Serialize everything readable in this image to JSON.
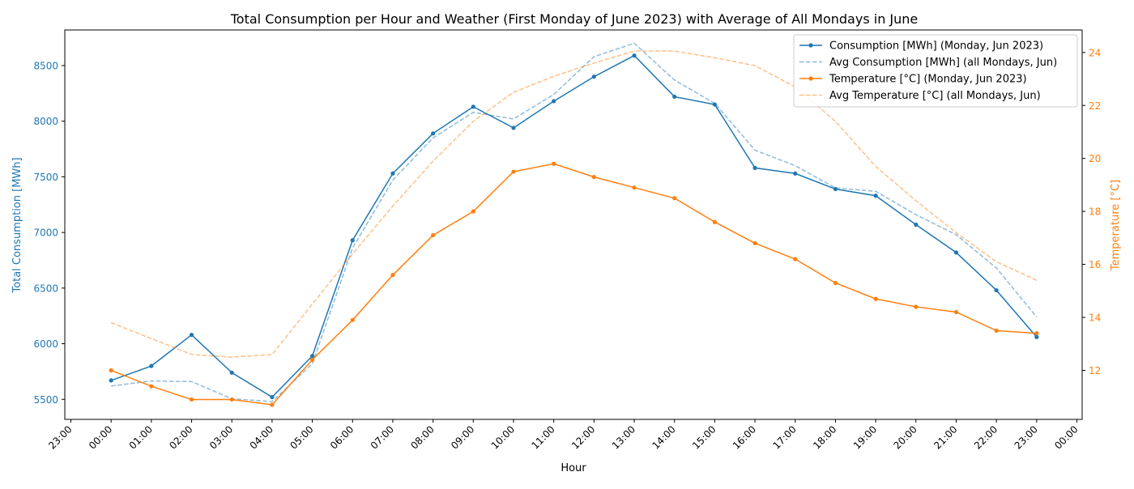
{
  "chart_data": {
    "type": "line",
    "title": "Total Consumption per Hour and Weather (First Monday of June 2023) with Average of All Mondays in June",
    "xlabel": "Hour",
    "ylabel_left": "Total Consumption [MWh]",
    "ylabel_right": "Temperature [°C]",
    "x_tick_labels": [
      "23:00",
      "00:00",
      "01:00",
      "02:00",
      "03:00",
      "04:00",
      "05:00",
      "06:00",
      "07:00",
      "08:00",
      "09:00",
      "10:00",
      "11:00",
      "12:00",
      "13:00",
      "14:00",
      "15:00",
      "16:00",
      "17:00",
      "18:00",
      "19:00",
      "20:00",
      "21:00",
      "22:00",
      "23:00",
      "00:00"
    ],
    "x": [
      "00:00",
      "01:00",
      "02:00",
      "03:00",
      "04:00",
      "05:00",
      "06:00",
      "07:00",
      "08:00",
      "09:00",
      "10:00",
      "11:00",
      "12:00",
      "13:00",
      "14:00",
      "15:00",
      "16:00",
      "17:00",
      "18:00",
      "19:00",
      "20:00",
      "21:00",
      "22:00",
      "23:00"
    ],
    "left_axis": {
      "ylim": [
        5320,
        8820
      ],
      "ticks": [
        5500,
        6000,
        6500,
        7000,
        7500,
        8000,
        8500
      ],
      "color": "#1f77b4"
    },
    "right_axis": {
      "ylim": [
        10.15,
        24.85
      ],
      "ticks": [
        12,
        14,
        16,
        18,
        20,
        22,
        24
      ],
      "color": "#ff7f0e"
    },
    "series": [
      {
        "name": "Consumption [MWh] (Monday, Jun 2023)",
        "axis": "left",
        "style": "solid",
        "marker": true,
        "color": "#1f77b4",
        "opacity": 1,
        "values": [
          5670,
          5800,
          6080,
          5740,
          5520,
          5890,
          6930,
          7530,
          7890,
          8130,
          7940,
          8180,
          8400,
          8590,
          8220,
          8150,
          7580,
          7530,
          7390,
          7330,
          7070,
          6820,
          6480,
          6060
        ]
      },
      {
        "name": "Avg Consumption [MWh] (all Mondays, Jun)",
        "axis": "left",
        "style": "dashed",
        "marker": false,
        "color": "#1f77b4",
        "opacity": 0.5,
        "values": [
          5620,
          5665,
          5660,
          5505,
          5480,
          5820,
          6860,
          7470,
          7850,
          8080,
          8020,
          8240,
          8580,
          8700,
          8370,
          8160,
          7740,
          7600,
          7400,
          7370,
          7160,
          6980,
          6680,
          6240
        ]
      },
      {
        "name": "Temperature [°C] (Monday, Jun 2023)",
        "axis": "right",
        "style": "solid",
        "marker": true,
        "color": "#ff7f0e",
        "opacity": 1,
        "values": [
          12.0,
          11.4,
          10.9,
          10.9,
          10.7,
          12.4,
          13.9,
          15.6,
          17.1,
          18.0,
          19.5,
          19.8,
          19.3,
          18.9,
          18.5,
          17.6,
          16.8,
          16.2,
          15.3,
          14.7,
          14.4,
          14.2,
          13.5,
          13.4
        ]
      },
      {
        "name": "Avg Temperature [°C] (all Mondays, Jun)",
        "axis": "right",
        "style": "dashed",
        "marker": false,
        "color": "#ff7f0e",
        "opacity": 0.5,
        "values": [
          13.8,
          13.2,
          12.6,
          12.5,
          12.6,
          14.5,
          16.4,
          18.2,
          19.9,
          21.4,
          22.5,
          23.1,
          23.6,
          24.05,
          24.05,
          23.8,
          23.5,
          22.7,
          21.4,
          19.7,
          18.4,
          17.2,
          16.1,
          15.4
        ]
      }
    ],
    "legend": "top-right",
    "grid": false
  }
}
